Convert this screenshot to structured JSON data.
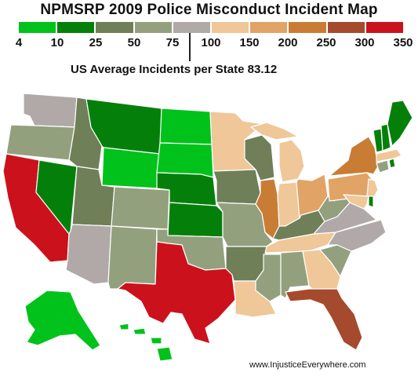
{
  "title": "NPMSRP 2009 Police Misconduct Incident Map",
  "legend": {
    "colors": [
      "#00c21b",
      "#04800a",
      "#6f7f58",
      "#93a07e",
      "#b1a9a8",
      "#efc798",
      "#e1a366",
      "#c97c34",
      "#a54a2d",
      "#cb121c"
    ],
    "ticks": [
      "4",
      "10",
      "25",
      "50",
      "75",
      "100",
      "150",
      "200",
      "250",
      "300",
      "350"
    ]
  },
  "average": {
    "label": "US Average Incidents per State 83.12",
    "value": 83.12
  },
  "credit": "www.InjusticeEverywhere.com",
  "map_data": {
    "states": {
      "WA": "#b1a9a8",
      "OR": "#93a07e",
      "CA": "#cb121c",
      "NV": "#04800a",
      "ID": "#6f7f58",
      "MT": "#04800a",
      "WY": "#00c21b",
      "UT": "#6f7f58",
      "AZ": "#b1a9a8",
      "CO": "#93a07e",
      "NM": "#93a07e",
      "ND": "#00c21b",
      "SD": "#00c21b",
      "NE": "#04800a",
      "KS": "#04800a",
      "OK": "#93a07e",
      "TX": "#cb121c",
      "MN": "#efc798",
      "IA": "#6f7f58",
      "MO": "#93a07e",
      "AR": "#6f7f58",
      "LA": "#efc798",
      "WI": "#6f7f58",
      "IL": "#c97c34",
      "MI": "#efc798",
      "IN": "#efc798",
      "KY": "#6f7f58",
      "TN": "#efc798",
      "MS": "#93a07e",
      "AL": "#93a07e",
      "GA": "#efc798",
      "FL": "#a54a2d",
      "SC": "#93a07e",
      "NC": "#b1a9a8",
      "VA": "#b1a9a8",
      "WV": "#93a07e",
      "OH": "#e1a366",
      "PA": "#e1a366",
      "NY": "#c97c34",
      "NJ": "#efc798",
      "MD": "#efc798",
      "DE": "#04800a",
      "CT": "#93a07e",
      "RI": "#04800a",
      "MA": "#efc798",
      "VT": "#04800a",
      "NH": "#04800a",
      "ME": "#04800a",
      "AK": "#00c21b",
      "HI": "#00c21b"
    }
  }
}
